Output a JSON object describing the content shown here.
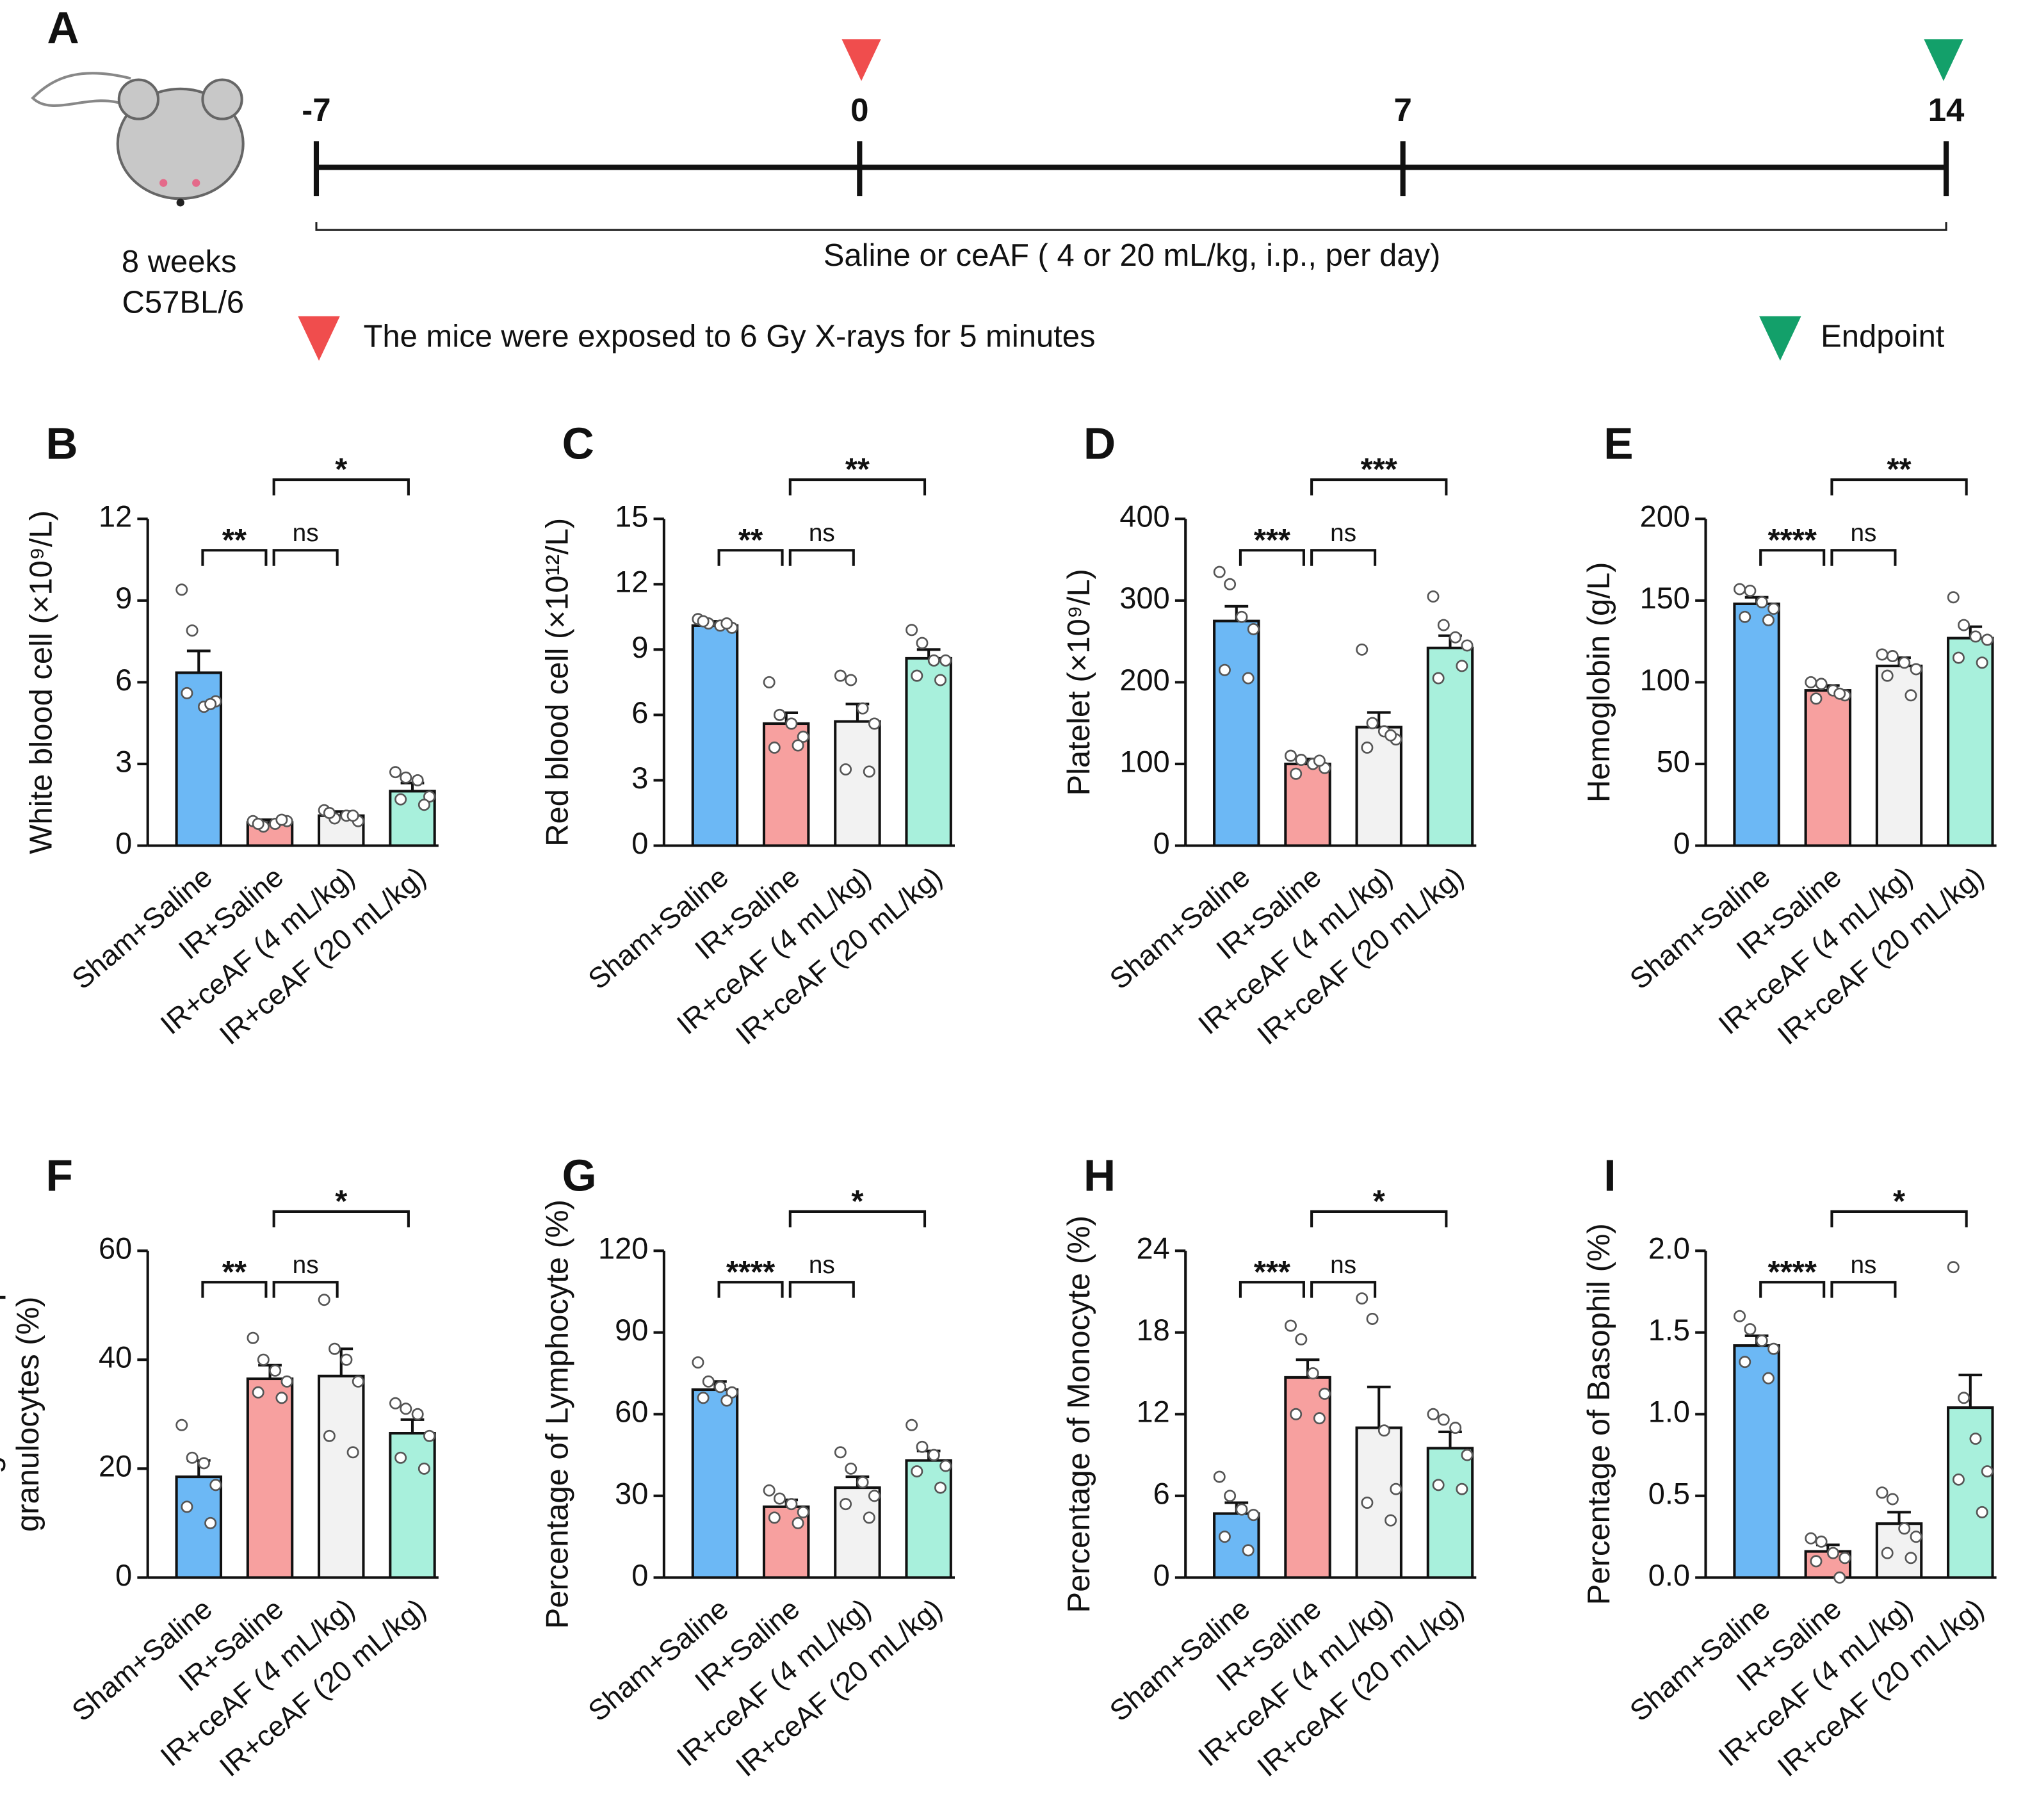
{
  "timeline": {
    "panel": "A",
    "ticks": [
      -7,
      0,
      7,
      14
    ],
    "xlim": [
      -7,
      14
    ],
    "treatment": "Saline or ceAF ( 4 or 20 mL/kg, i.p., per day)",
    "mouse": [
      "8 weeks",
      "C57BL/6"
    ],
    "legend": [
      "The mice were exposed to 6 Gy X-rays for 5 minutes",
      "Endpoint"
    ]
  },
  "chart_data": [
    {
      "type": "bar",
      "panel": "B",
      "ylabel": "White blood cell (×10⁹/L)",
      "categories": [
        "Sham+Saline",
        "IR+Saline",
        "IR+ceAF (4 mL/kg)",
        "IR+ceAF (20 mL/kg)"
      ],
      "colors": [
        "#6cb8f5",
        "#f7a09f",
        "#f2f2f2",
        "#a8f0dc"
      ],
      "values": [
        6.35,
        0.85,
        1.1,
        2.0
      ],
      "errors": [
        0.8,
        0.1,
        0.15,
        0.3
      ],
      "points": [
        [
          9.4,
          7.9,
          5.1,
          5.3,
          5.6,
          5.2
        ],
        [
          0.9,
          0.7,
          0.8,
          0.9,
          0.8,
          0.95
        ],
        [
          1.3,
          1.0,
          1.1,
          0.9,
          1.2,
          1.1
        ],
        [
          2.7,
          2.5,
          2.4,
          1.8,
          1.7,
          1.5
        ]
      ],
      "ylim": [
        0,
        12
      ],
      "yticks": [
        0,
        3,
        6,
        9,
        12
      ],
      "significance": [
        {
          "text": "**",
          "groups": [
            0,
            1
          ]
        },
        {
          "text": "ns",
          "groups": [
            1,
            2
          ]
        },
        {
          "text": "*",
          "groups": [
            1,
            3
          ]
        }
      ]
    },
    {
      "type": "bar",
      "panel": "C",
      "ylabel": "Red blood cell (×10¹²/L)",
      "categories": [
        "Sham+Saline",
        "IR+Saline",
        "IR+ceAF (4 mL/kg)",
        "IR+ceAF (20 mL/kg)"
      ],
      "colors": [
        "#6cb8f5",
        "#f7a09f",
        "#f2f2f2",
        "#a8f0dc"
      ],
      "values": [
        10.1,
        5.6,
        5.7,
        8.6
      ],
      "errors": [
        0.2,
        0.5,
        0.8,
        0.4
      ],
      "points": [
        [
          10.4,
          10.2,
          10.1,
          10.0,
          10.3,
          10.2
        ],
        [
          7.5,
          6.0,
          5.6,
          5.0,
          4.5,
          4.6
        ],
        [
          7.8,
          7.6,
          6.3,
          5.6,
          3.5,
          3.4
        ],
        [
          9.9,
          9.3,
          8.5,
          8.5,
          7.8,
          7.6
        ]
      ],
      "ylim": [
        0,
        15
      ],
      "yticks": [
        0,
        3,
        6,
        9,
        12,
        15
      ],
      "significance": [
        {
          "text": "**",
          "groups": [
            0,
            1
          ]
        },
        {
          "text": "ns",
          "groups": [
            1,
            2
          ]
        },
        {
          "text": "**",
          "groups": [
            1,
            3
          ]
        }
      ]
    },
    {
      "type": "bar",
      "panel": "D",
      "ylabel": "Platelet (×10⁹/L)",
      "categories": [
        "Sham+Saline",
        "IR+Saline",
        "IR+ceAF (4 mL/kg)",
        "IR+ceAF (20 mL/kg)"
      ],
      "colors": [
        "#6cb8f5",
        "#f7a09f",
        "#f2f2f2",
        "#a8f0dc"
      ],
      "values": [
        275,
        100,
        145,
        242
      ],
      "errors": [
        18,
        6,
        18,
        15
      ],
      "points": [
        [
          335,
          320,
          280,
          265,
          215,
          205
        ],
        [
          110,
          105,
          100,
          95,
          88,
          104
        ],
        [
          240,
          150,
          140,
          130,
          120,
          135
        ],
        [
          305,
          270,
          255,
          245,
          205,
          220
        ]
      ],
      "ylim": [
        0,
        400
      ],
      "yticks": [
        0,
        100,
        200,
        300,
        400
      ],
      "significance": [
        {
          "text": "***",
          "groups": [
            0,
            1
          ]
        },
        {
          "text": "ns",
          "groups": [
            1,
            2
          ]
        },
        {
          "text": "***",
          "groups": [
            1,
            3
          ]
        }
      ]
    },
    {
      "type": "bar",
      "panel": "E",
      "ylabel": "Hemoglobin (g/L)",
      "categories": [
        "Sham+Saline",
        "IR+Saline",
        "IR+ceAF (4 mL/kg)",
        "IR+ceAF (20 mL/kg)"
      ],
      "colors": [
        "#6cb8f5",
        "#f7a09f",
        "#f2f2f2",
        "#a8f0dc"
      ],
      "values": [
        148,
        95,
        110,
        127
      ],
      "errors": [
        4,
        3,
        5,
        7
      ],
      "points": [
        [
          157,
          156,
          149,
          145,
          140,
          138
        ],
        [
          100,
          99,
          95,
          92,
          90,
          93
        ],
        [
          117,
          116,
          112,
          108,
          104,
          92
        ],
        [
          152,
          135,
          128,
          126,
          115,
          112
        ]
      ],
      "ylim": [
        0,
        200
      ],
      "yticks": [
        0,
        50,
        100,
        150,
        200
      ],
      "significance": [
        {
          "text": "****",
          "groups": [
            0,
            1
          ]
        },
        {
          "text": "ns",
          "groups": [
            1,
            2
          ]
        },
        {
          "text": "**",
          "groups": [
            1,
            3
          ]
        }
      ]
    },
    {
      "type": "bar",
      "panel": "F",
      "ylabel": [
        "Percentage of Neutrophilic",
        "granulocytes (%)"
      ],
      "categories": [
        "Sham+Saline",
        "IR+Saline",
        "IR+ceAF (4 mL/kg)",
        "IR+ceAF (20 mL/kg)"
      ],
      "colors": [
        "#6cb8f5",
        "#f7a09f",
        "#f2f2f2",
        "#a8f0dc"
      ],
      "values": [
        18.5,
        36.5,
        37,
        26.5
      ],
      "errors": [
        3,
        2.5,
        5,
        2.5
      ],
      "points": [
        [
          28,
          22,
          21,
          17,
          13,
          10
        ],
        [
          44,
          40,
          38,
          36,
          34,
          33
        ],
        [
          51,
          42,
          40,
          36,
          26,
          23
        ],
        [
          32,
          31,
          30,
          26,
          22,
          20
        ]
      ],
      "ylim": [
        0,
        60
      ],
      "yticks": [
        0,
        20,
        40,
        60
      ],
      "significance": [
        {
          "text": "**",
          "groups": [
            0,
            1
          ]
        },
        {
          "text": "ns",
          "groups": [
            1,
            2
          ]
        },
        {
          "text": "*",
          "groups": [
            1,
            3
          ]
        }
      ]
    },
    {
      "type": "bar",
      "panel": "G",
      "ylabel": "Percentage of Lymphocyte (%)",
      "categories": [
        "Sham+Saline",
        "IR+Saline",
        "IR+ceAF (4 mL/kg)",
        "IR+ceAF (20 mL/kg)"
      ],
      "colors": [
        "#6cb8f5",
        "#f7a09f",
        "#f2f2f2",
        "#a8f0dc"
      ],
      "values": [
        69,
        26,
        33,
        43
      ],
      "errors": [
        3,
        2.5,
        4,
        3.5
      ],
      "points": [
        [
          79,
          72,
          70,
          68,
          66,
          65
        ],
        [
          32,
          29,
          27,
          24,
          22,
          20
        ],
        [
          46,
          40,
          35,
          30,
          27,
          22
        ],
        [
          56,
          48,
          45,
          41,
          39,
          33
        ]
      ],
      "ylim": [
        0,
        120
      ],
      "yticks": [
        0,
        30,
        60,
        90,
        120
      ],
      "significance": [
        {
          "text": "****",
          "groups": [
            0,
            1
          ]
        },
        {
          "text": "ns",
          "groups": [
            1,
            2
          ]
        },
        {
          "text": "*",
          "groups": [
            1,
            3
          ]
        }
      ]
    },
    {
      "type": "bar",
      "panel": "H",
      "ylabel": "Percentage of Monocyte (%)",
      "categories": [
        "Sham+Saline",
        "IR+Saline",
        "IR+ceAF (4 mL/kg)",
        "IR+ceAF (20 mL/kg)"
      ],
      "colors": [
        "#6cb8f5",
        "#f7a09f",
        "#f2f2f2",
        "#a8f0dc"
      ],
      "values": [
        4.7,
        14.7,
        11,
        9.5
      ],
      "errors": [
        0.8,
        1.3,
        3,
        1.2
      ],
      "points": [
        [
          7.4,
          6.0,
          5.0,
          4.6,
          3.0,
          2.0
        ],
        [
          18.5,
          17.5,
          15.0,
          13.5,
          12.0,
          11.7
        ],
        [
          20.5,
          19.0,
          10.8,
          6.5,
          5.5,
          4.2
        ],
        [
          12.0,
          11.6,
          11.0,
          9.0,
          6.8,
          6.5
        ]
      ],
      "ylim": [
        0,
        24
      ],
      "yticks": [
        0,
        6,
        12,
        18,
        24
      ],
      "significance": [
        {
          "text": "***",
          "groups": [
            0,
            1
          ]
        },
        {
          "text": "ns",
          "groups": [
            1,
            2
          ]
        },
        {
          "text": "*",
          "groups": [
            1,
            3
          ]
        }
      ]
    },
    {
      "type": "bar",
      "panel": "I",
      "ylabel": "Percentage of Basophil (%)",
      "categories": [
        "Sham+Saline",
        "IR+Saline",
        "IR+ceAF (4 mL/kg)",
        "IR+ceAF (20 mL/kg)"
      ],
      "colors": [
        "#6cb8f5",
        "#f7a09f",
        "#f2f2f2",
        "#a8f0dc"
      ],
      "values": [
        1.42,
        0.16,
        0.33,
        1.04
      ],
      "errors": [
        0.06,
        0.04,
        0.07,
        0.2
      ],
      "points": [
        [
          1.6,
          1.52,
          1.45,
          1.4,
          1.32,
          1.22
        ],
        [
          0.24,
          0.22,
          0.15,
          0.12,
          0.1,
          0.0
        ],
        [
          0.52,
          0.48,
          0.3,
          0.25,
          0.15,
          0.12
        ],
        [
          1.9,
          1.1,
          0.85,
          0.65,
          0.6,
          0.4
        ]
      ],
      "ylim": [
        0,
        2
      ],
      "yticks": [
        {
          "value": 0,
          "label": "0.0"
        },
        0.5,
        {
          "value": 1,
          "label": "1.0"
        },
        1.5,
        {
          "value": 2,
          "label": "2.0"
        }
      ],
      "significance": [
        {
          "text": "****",
          "groups": [
            0,
            1
          ]
        },
        {
          "text": "ns",
          "groups": [
            1,
            2
          ]
        },
        {
          "text": "*",
          "groups": [
            1,
            3
          ]
        }
      ]
    }
  ]
}
